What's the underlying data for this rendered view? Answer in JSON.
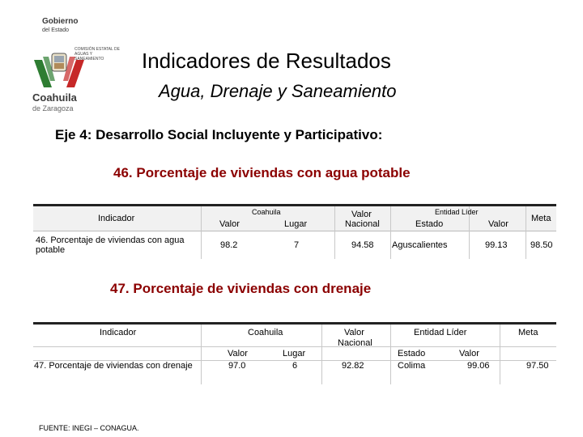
{
  "logo": {
    "line1": "Gobierno",
    "line2": "del Estado",
    "sub": "COMISIÓN ESTATAL DE AGUAS Y SANEAMIENTO",
    "coahuila": "Coahuila",
    "zaragoza": "de Zaragoza"
  },
  "header": {
    "title": "Indicadores de Resultados",
    "subtitle": "Agua, Drenaje y Saneamiento"
  },
  "eje": "Eje 4: Desarrollo Social Incluyente y Participativo:",
  "table46": {
    "heading": "46. Porcentaje de viviendas con agua potable",
    "col_indicador": "Indicador",
    "col_coahuila": "Coahuila",
    "col_valor": "Valor",
    "col_lugar": "Lugar",
    "col_valor_nacional_1": "Valor",
    "col_valor_nacional_2": "Nacional",
    "col_entidad_lider": "Entidad Líder",
    "col_estado": "Estado",
    "col_valor_lider": "Valor",
    "col_meta": "Meta",
    "row": {
      "indicador_1": "46. Porcentaje de viviendas con agua",
      "indicador_2": "potable",
      "valor": "98.2",
      "lugar": "7",
      "nacional": "94.58",
      "estado": "Aguscalientes",
      "valor_lider": "99.13",
      "meta": "98.50"
    }
  },
  "table47": {
    "heading": "47. Porcentaje de viviendas con drenaje",
    "col_indicador": "Indicador",
    "col_coahuila": "Coahuila",
    "col_valor_nacional_1": "Valor",
    "col_valor_nacional_2": "Nacional",
    "col_entidad_lider": "Entidad Líder",
    "col_meta": "Meta",
    "col_valor": "Valor",
    "col_lugar": "Lugar",
    "col_estado": "Estado",
    "col_valor_lider": "Valor",
    "row": {
      "indicador": "47. Porcentaje de viviendas con drenaje",
      "valor": "97.0",
      "lugar": "6",
      "nacional": "92.82",
      "estado": "Colima",
      "valor_lider": "99.06",
      "meta": "97.50"
    }
  },
  "footer": "FUENTE: INEGI – CONAGUA."
}
